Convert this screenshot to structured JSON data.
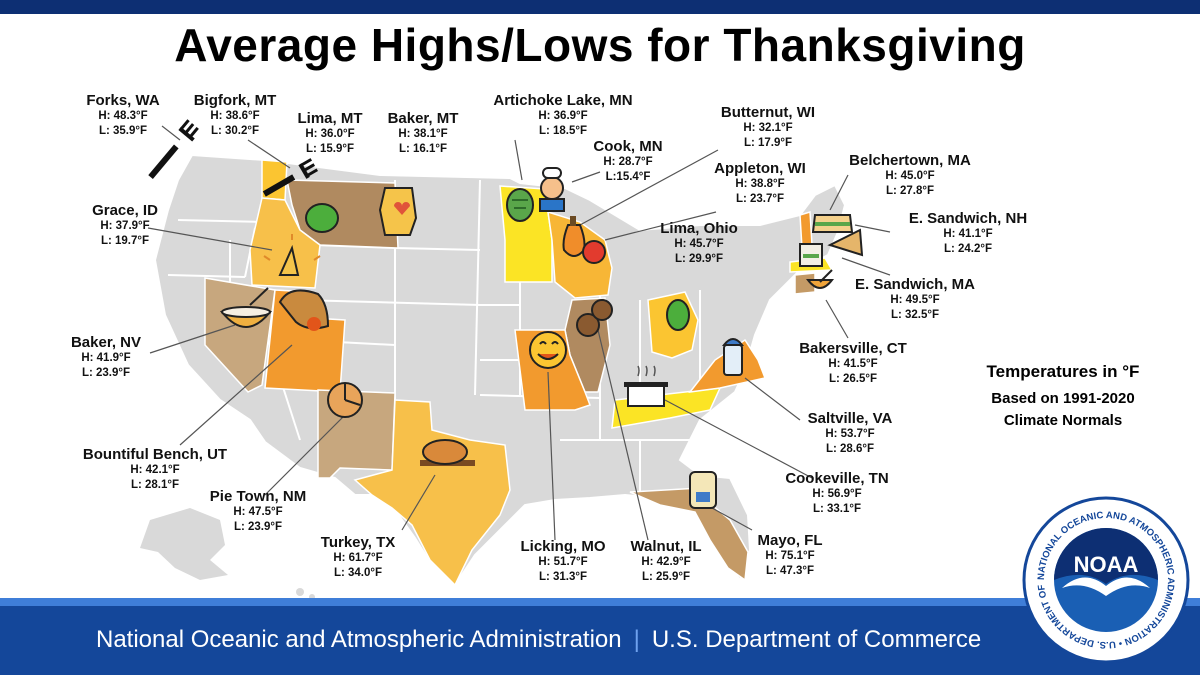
{
  "title": "Average Highs/Lows for Thanksgiving",
  "legend": {
    "line1": "Temperatures in °F",
    "line2": "Based on 1991-2020",
    "line3": "Climate Normals"
  },
  "locations": [
    {
      "name": "Forks, WA",
      "high": "H: 48.3°F",
      "low": "L: 35.9°F",
      "icon": "fork-icon"
    },
    {
      "name": "Bigfork, MT",
      "high": "H: 38.6°F",
      "low": "L: 30.2°F",
      "icon": "fork-icon"
    },
    {
      "name": "Lima, MT",
      "high": "H: 36.0°F",
      "low": "L: 15.9°F",
      "icon": "lima-bean-icon"
    },
    {
      "name": "Baker, MT",
      "high": "H: 38.1°F",
      "low": "L: 16.1°F",
      "icon": "oven-mitt-icon"
    },
    {
      "name": "Artichoke Lake, MN",
      "high": "H: 36.9°F",
      "low": "L: 18.5°F",
      "icon": "artichoke-icon"
    },
    {
      "name": "Cook, MN",
      "high": "H: 28.7°F",
      "low": "L:15.4°F",
      "icon": "chef-icon"
    },
    {
      "name": "Butternut, WI",
      "high": "H: 32.1°F",
      "low": "L: 17.9°F",
      "icon": "butternut-squash-icon"
    },
    {
      "name": "Appleton, WI",
      "high": "H: 38.8°F",
      "low": "L: 23.7°F",
      "icon": "apple-icon"
    },
    {
      "name": "Belchertown, MA",
      "high": "H: 45.0°F",
      "low": "L: 27.8°F",
      "icon": "sandwich-icon"
    },
    {
      "name": "E. Sandwich, NH",
      "high": "H: 41.1°F",
      "low": "L: 24.2°F",
      "icon": "sandwich-icon"
    },
    {
      "name": "Grace, ID",
      "high": "H: 37.9°F",
      "low": "L: 19.7°F",
      "icon": "praying-hands-icon"
    },
    {
      "name": "Lima, Ohio",
      "high": "H: 45.7°F",
      "low": "L: 29.9°F",
      "icon": "lima-bean-icon"
    },
    {
      "name": "E. Sandwich, MA",
      "high": "H: 49.5°F",
      "low": "L: 32.5°F",
      "icon": "sandwich-icon"
    },
    {
      "name": "Baker, NV",
      "high": "H: 41.9°F",
      "low": "L: 23.9°F",
      "icon": "mixing-bowl-icon"
    },
    {
      "name": "Bakersville, CT",
      "high": "H: 41.5°F",
      "low": "L: 26.5°F",
      "icon": "mixing-bowl-icon"
    },
    {
      "name": "Saltville, VA",
      "high": "H: 53.7°F",
      "low": "L: 28.6°F",
      "icon": "salt-shaker-icon"
    },
    {
      "name": "Bountiful Bench, UT",
      "high": "H: 42.1°F",
      "low": "L: 28.1°F",
      "icon": "cornucopia-icon"
    },
    {
      "name": "Cookeville, TN",
      "high": "H: 56.9°F",
      "low": "L: 33.1°F",
      "icon": "cooking-pot-icon"
    },
    {
      "name": "Pie Town, NM",
      "high": "H: 47.5°F",
      "low": "L: 23.9°F",
      "icon": "pie-icon"
    },
    {
      "name": "Turkey, TX",
      "high": "H: 61.7°F",
      "low": "L: 34.0°F",
      "icon": "turkey-icon"
    },
    {
      "name": "Licking, MO",
      "high": "H: 51.7°F",
      "low": "L: 31.3°F",
      "icon": "yum-face-icon"
    },
    {
      "name": "Walnut, IL",
      "high": "H: 42.9°F",
      "low": "L: 25.9°F",
      "icon": "walnut-icon"
    },
    {
      "name": "Mayo, FL",
      "high": "H: 75.1°F",
      "low": "L: 47.3°F",
      "icon": "mayo-jar-icon"
    }
  ],
  "colors": {
    "header_bar": "#0d2f73",
    "footer_bg": "#14479a",
    "footer_stripe": "#3f7ed8",
    "land": "#d9d9d9",
    "state_border": "#ffffff",
    "highlight_tan": "#c7a77e",
    "highlight_brown": "#b08a60",
    "highlight_orange": "#f29a2e",
    "highlight_lightorange": "#f7c04a",
    "highlight_yellow": "#fbe425"
  },
  "footer": {
    "left": "National Oceanic and Atmospheric Administration",
    "right": "U.S. Department of Commerce"
  },
  "logo": {
    "ring_text": "NATIONAL OCEANIC AND ATMOSPHERIC ADMINISTRATION • U.S. DEPARTMENT OF COMMERCE •",
    "center": "NOAA"
  }
}
